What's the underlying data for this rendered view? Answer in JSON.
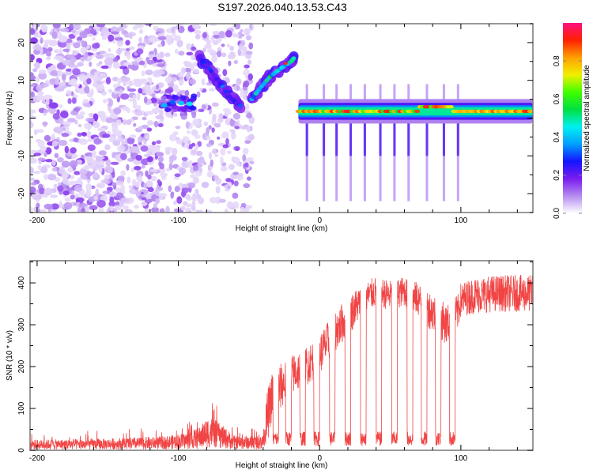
{
  "figure": {
    "title": "S197.2026.040.13.53.C43"
  },
  "chart_data": [
    {
      "type": "heatmap",
      "name": "spectrogram",
      "title": "S197.2026.040.13.53.C43",
      "xlabel": "Height of straight line (km)",
      "ylabel": "Frequency (Hz)",
      "xlim": [
        -205,
        151
      ],
      "ylim": [
        -25,
        25
      ],
      "xticks": [
        -200,
        -100,
        0,
        100
      ],
      "xtick_labels": [
        "-200",
        "-100",
        "0",
        "100"
      ],
      "xminor_step": 20,
      "yticks": [
        -20,
        -10,
        0,
        10,
        20
      ],
      "ytick_labels": [
        "-20",
        "-10",
        "0",
        "10",
        "20"
      ],
      "yminor_step": 5,
      "colorbar": {
        "label": "Normalized spectral amplitude",
        "range": [
          0,
          1
        ],
        "ticks": [
          0.0,
          0.2,
          0.4,
          0.6,
          0.8
        ],
        "tick_labels": [
          "0.0",
          "0.2",
          "0.4",
          "0.6",
          "0.8"
        ],
        "colors": [
          "#ffffff",
          "#b58cf0",
          "#7a1cf0",
          "#1414ff",
          "#00a0ff",
          "#00f0f0",
          "#00e040",
          "#40ff00",
          "#f0f000",
          "#ffa000",
          "#ff2000",
          "#ff1080"
        ]
      },
      "features": [
        {
          "label": "noise-region",
          "x_range": [
            -205,
            -110
          ],
          "y_range": [
            -25,
            25
          ],
          "amplitude": 0.12
        },
        {
          "label": "cluster-near-minus100",
          "x_range": [
            -112,
            -88
          ],
          "y_center": 4,
          "amplitude": 0.45
        },
        {
          "label": "branch-a",
          "points": [
            [
              -85,
              16
            ],
            [
              -78,
              13
            ],
            [
              -70,
              9
            ],
            [
              -62,
              5
            ],
            [
              -55,
              3
            ]
          ],
          "amplitude": 0.35
        },
        {
          "label": "rising-line",
          "points": [
            [
              -48,
              5
            ],
            [
              -42,
              8
            ],
            [
              -35,
              11
            ],
            [
              -28,
              13
            ],
            [
              -20,
              15
            ],
            [
              -18,
              16
            ]
          ],
          "amplitude": 0.6
        },
        {
          "label": "bright-peak",
          "x": -24,
          "y": 14.5,
          "amplitude": 0.9
        },
        {
          "label": "steady-line",
          "x_range": [
            -15,
            151
          ],
          "y": 1.8,
          "amplitude": 0.75
        },
        {
          "label": "steady-line-bump",
          "x_range": [
            70,
            95
          ],
          "y": 3.2,
          "amplitude": 0.85
        }
      ],
      "dropouts_x": [
        -9,
        3,
        12,
        22,
        32,
        43,
        53,
        63,
        76,
        88,
        98
      ]
    },
    {
      "type": "line",
      "name": "snr",
      "xlabel": "Height of straight line (km)",
      "ylabel": "SNR (10 * v/v)",
      "xlim": [
        -205,
        151
      ],
      "ylim": [
        0,
        453
      ],
      "xticks": [
        -200,
        -100,
        0,
        100
      ],
      "xtick_labels": [
        "-200",
        "-100",
        "0",
        "100"
      ],
      "xminor_step": 20,
      "yticks": [
        0,
        100,
        200,
        300,
        400
      ],
      "ytick_labels": [
        "0",
        "100",
        "200",
        "300",
        "400"
      ],
      "yminor_step": 50,
      "series": [
        {
          "name": "SNR",
          "color": "#f03030",
          "envelope": {
            "x": [
              -205,
              -150,
              -110,
              -95,
              -85,
              -78,
              -70,
              -60,
              -40,
              -37,
              -33,
              -28,
              -20,
              -10,
              0,
              10,
              20,
              30,
              40,
              50,
              60,
              70,
              80,
              90,
              98,
              100,
              110,
              125,
              151
            ],
            "baseline": [
              18,
              20,
              24,
              30,
              40,
              60,
              45,
              25,
              25,
              80,
              140,
              150,
              180,
              200,
              230,
              280,
              320,
              360,
              380,
              370,
              380,
              360,
              330,
              300,
              330,
              360,
              370,
              375,
              375
            ],
            "noise": [
              18,
              20,
              22,
              28,
              35,
              40,
              35,
              22,
              20,
              80,
              70,
              70,
              60,
              60,
              60,
              60,
              60,
              50,
              45,
              45,
              45,
              50,
              60,
              60,
              55,
              50,
              55,
              55,
              55
            ]
          },
          "dropouts": [
            {
              "x": -33,
              "width": 4
            },
            {
              "x": -24,
              "width": 4
            },
            {
              "x": -14,
              "width": 4
            },
            {
              "x": -4,
              "width": 4
            },
            {
              "x": 7,
              "width": 4
            },
            {
              "x": 18,
              "width": 4
            },
            {
              "x": 29,
              "width": 4
            },
            {
              "x": 40,
              "width": 4
            },
            {
              "x": 51,
              "width": 4
            },
            {
              "x": 62,
              "width": 4
            },
            {
              "x": 72,
              "width": 4
            },
            {
              "x": 82,
              "width": 4
            },
            {
              "x": 92,
              "width": 4
            }
          ],
          "dropout_level": 25
        }
      ]
    }
  ]
}
